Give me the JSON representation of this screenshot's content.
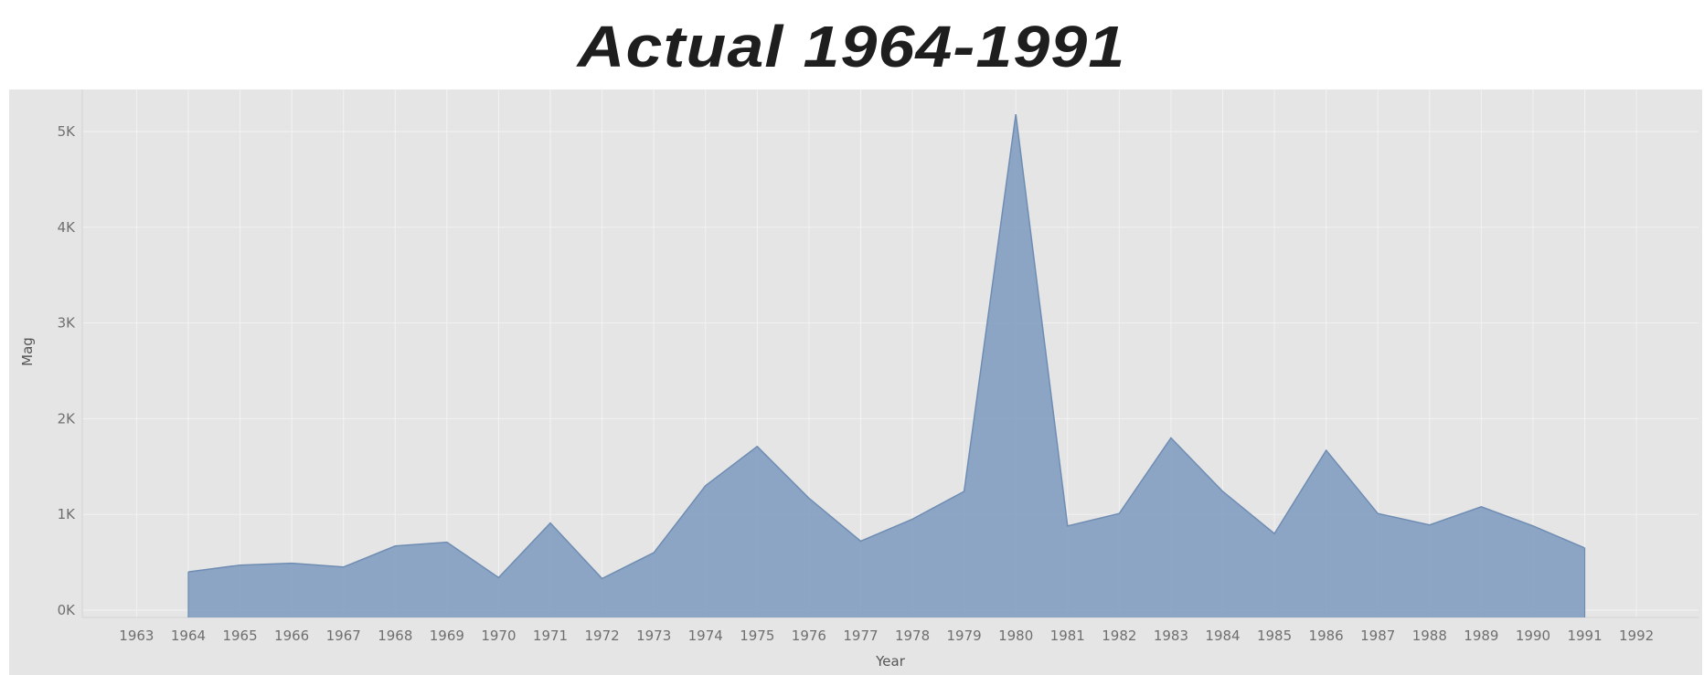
{
  "chart_data": {
    "type": "area",
    "title": "Actual 1964-1991",
    "xlabel": "Year",
    "ylabel": "Mag",
    "x_ticks": [
      1963,
      1964,
      1965,
      1966,
      1967,
      1968,
      1969,
      1970,
      1971,
      1972,
      1973,
      1974,
      1975,
      1976,
      1977,
      1978,
      1979,
      1980,
      1981,
      1982,
      1983,
      1984,
      1985,
      1986,
      1987,
      1988,
      1989,
      1990,
      1991,
      1992
    ],
    "y_ticks": [
      {
        "value": 0,
        "label": "0K"
      },
      {
        "value": 1000,
        "label": "1K"
      },
      {
        "value": 2000,
        "label": "2K"
      },
      {
        "value": 3000,
        "label": "3K"
      },
      {
        "value": 4000,
        "label": "4K"
      },
      {
        "value": 5000,
        "label": "5K"
      }
    ],
    "xlim": [
      1961.95,
      1993.2
    ],
    "ylim": [
      -80,
      5440
    ],
    "grid": true,
    "fill_color": "#7f9cbf",
    "line_color": "#6f8db3",
    "background_color": "#e5e5e5",
    "x": [
      1964,
      1965,
      1966,
      1967,
      1968,
      1969,
      1970,
      1971,
      1972,
      1973,
      1974,
      1975,
      1976,
      1977,
      1978,
      1979,
      1980,
      1981,
      1982,
      1983,
      1984,
      1985,
      1986,
      1987,
      1988,
      1989,
      1990,
      1991
    ],
    "values": [
      400,
      470,
      490,
      450,
      670,
      710,
      340,
      910,
      330,
      600,
      1300,
      1710,
      1170,
      720,
      950,
      1240,
      5180,
      880,
      1010,
      1800,
      1240,
      800,
      1670,
      1010,
      890,
      1080,
      880,
      650
    ]
  }
}
